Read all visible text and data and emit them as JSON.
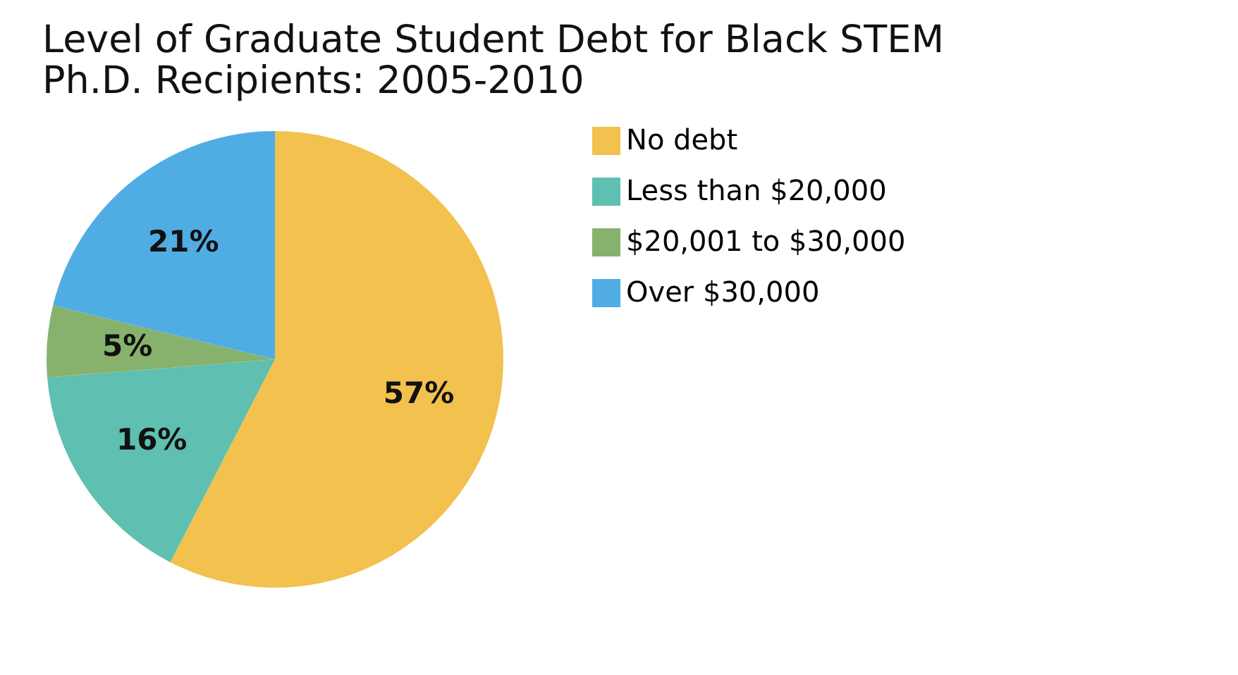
{
  "chart_data": {
    "type": "pie",
    "title": [
      "Level of Graduate Student Debt for Black STEM",
      "Ph.D. Recipients: 2005-2010"
    ],
    "categories": [
      "No debt",
      "Less than $20,000",
      "$20,001 to $30,000",
      "Over $30,000"
    ],
    "values": [
      57,
      16,
      5,
      21
    ],
    "colors": [
      "#f2c14e",
      "#5fbfb0",
      "#86b26e",
      "#50ade3"
    ],
    "value_labels": [
      "57%",
      "16%",
      "5%",
      "21%"
    ],
    "legend": "right"
  }
}
